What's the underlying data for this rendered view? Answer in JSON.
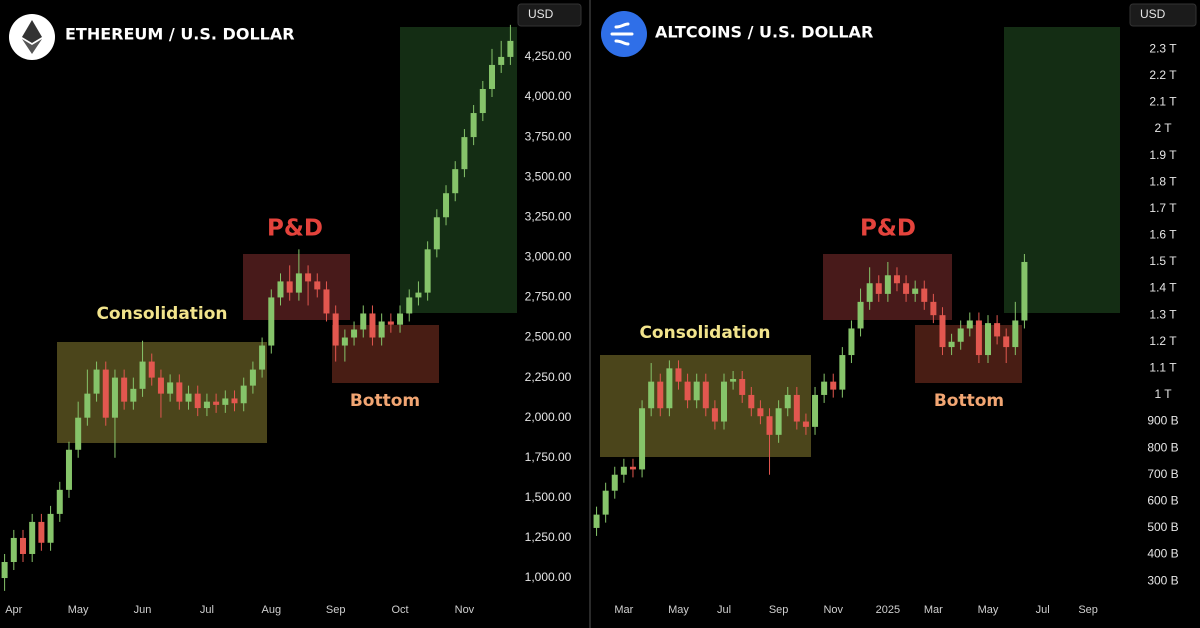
{
  "chart_data": [
    {
      "type": "candlestick",
      "title": "ETHEREUM / U.S. DOLLAR",
      "currency": "USD",
      "annotations": [
        "Consolidation",
        "P&D",
        "Bottom"
      ],
      "up_color": "#86c46a",
      "down_color": "#e2574f",
      "categories": [
        null,
        "Apr",
        null,
        null,
        null,
        null,
        null,
        null,
        "May",
        null,
        null,
        null,
        null,
        null,
        null,
        "Jun",
        null,
        null,
        null,
        null,
        null,
        null,
        "Jul",
        null,
        null,
        null,
        null,
        null,
        null,
        "Aug",
        null,
        null,
        null,
        null,
        null,
        null,
        "Sep",
        null,
        null,
        null,
        null,
        null,
        null,
        "Oct",
        null,
        null,
        null,
        null,
        null,
        null,
        "Nov",
        null,
        null,
        null,
        null,
        null
      ],
      "open": [
        1000,
        1100,
        1250,
        1150,
        1350,
        1220,
        1400,
        1550,
        1800,
        2000,
        2150,
        2300,
        2000,
        2250,
        2100,
        2180,
        2350,
        2250,
        2150,
        2220,
        2100,
        2150,
        2060,
        2100,
        2080,
        2120,
        2090,
        2200,
        2300,
        2450,
        2750,
        2850,
        2780,
        2900,
        2850,
        2800,
        2650,
        2450,
        2500,
        2550,
        2650,
        2500,
        2600,
        2580,
        2650,
        2750,
        2780,
        3050,
        3250,
        3400,
        3550,
        3750,
        3900,
        4050,
        4200,
        4250
      ],
      "high": [
        1150,
        1300,
        1300,
        1400,
        1400,
        1450,
        1600,
        1850,
        2100,
        2300,
        2350,
        2350,
        2300,
        2300,
        2250,
        2480,
        2400,
        2300,
        2270,
        2270,
        2200,
        2200,
        2150,
        2150,
        2170,
        2170,
        2250,
        2350,
        2500,
        2800,
        2900,
        2950,
        3050,
        2950,
        2900,
        2850,
        2700,
        2550,
        2600,
        2700,
        2700,
        2650,
        2650,
        2700,
        2800,
        2850,
        3100,
        3300,
        3450,
        3600,
        3800,
        3950,
        4100,
        4300,
        4350,
        4450
      ],
      "low": [
        920,
        1050,
        1100,
        1100,
        1170,
        1170,
        1350,
        1500,
        1750,
        1950,
        2100,
        1950,
        1750,
        2050,
        2050,
        2130,
        2200,
        2000,
        2100,
        2050,
        2050,
        2010,
        2010,
        2030,
        2030,
        2040,
        2040,
        2150,
        2250,
        2400,
        2700,
        2730,
        2730,
        2700,
        2750,
        2600,
        2350,
        2350,
        2450,
        2500,
        2450,
        2450,
        2530,
        2530,
        2600,
        2700,
        2730,
        3000,
        3200,
        3350,
        3500,
        3700,
        3850,
        4000,
        4150,
        4200
      ],
      "close": [
        1100,
        1250,
        1150,
        1350,
        1220,
        1400,
        1550,
        1800,
        2000,
        2150,
        2300,
        2000,
        2250,
        2100,
        2180,
        2350,
        2250,
        2150,
        2220,
        2100,
        2150,
        2060,
        2100,
        2080,
        2120,
        2090,
        2200,
        2300,
        2450,
        2750,
        2850,
        2780,
        2900,
        2850,
        2800,
        2650,
        2450,
        2500,
        2550,
        2650,
        2500,
        2600,
        2580,
        2650,
        2750,
        2780,
        3050,
        3250,
        3400,
        3550,
        3750,
        3900,
        4050,
        4200,
        4250,
        4350
      ],
      "ylim": [
        863,
        4605
      ],
      "yticks": [
        {
          "value": 1000,
          "label": "1,000.00"
        },
        {
          "value": 1250,
          "label": "1,250.00"
        },
        {
          "value": 1500,
          "label": "1,500.00"
        },
        {
          "value": 1750,
          "label": "1,750.00"
        },
        {
          "value": 2000,
          "label": "2,000.00"
        },
        {
          "value": 2250,
          "label": "2,250.00"
        },
        {
          "value": 2500,
          "label": "2,500.00"
        },
        {
          "value": 2750,
          "label": "2,750.00"
        },
        {
          "value": 3000,
          "label": "3,000.00"
        },
        {
          "value": 3250,
          "label": "3,250.00"
        },
        {
          "value": 3500,
          "label": "3,500.00"
        },
        {
          "value": 3750,
          "label": "3,750.00"
        },
        {
          "value": 4000,
          "label": "4,000.00"
        },
        {
          "value": 4250,
          "label": "4,250.00"
        }
      ]
    },
    {
      "type": "candlestick",
      "title": "ALTCOINS / U.S. DOLLAR",
      "currency": "USD",
      "annotations": [
        "Consolidation",
        "P&D",
        "Bottom"
      ],
      "up_color": "#86c46a",
      "down_color": "#e2574f",
      "categories": [
        null,
        null,
        null,
        "Mar",
        null,
        null,
        null,
        null,
        null,
        "May",
        null,
        null,
        null,
        null,
        "Jul",
        null,
        null,
        null,
        null,
        null,
        "Sep",
        null,
        null,
        null,
        null,
        null,
        "Nov",
        null,
        null,
        null,
        null,
        null,
        "2025",
        null,
        null,
        null,
        null,
        "Mar",
        null,
        null,
        null,
        null,
        null,
        "May",
        null,
        null,
        null,
        null,
        null,
        "Jul",
        null,
        null,
        null,
        null,
        "Sep",
        null,
        null,
        null
      ],
      "open": [
        500000000000.0,
        550000000000.0,
        640000000000.0,
        700000000000.0,
        730000000000.0,
        720000000000.0,
        950000000000.0,
        1050000000000.0,
        950000000000.0,
        1100000000000.0,
        1050000000000.0,
        980000000000.0,
        1050000000000.0,
        950000000000.0,
        900000000000.0,
        1050000000000.0,
        1060000000000.0,
        1000000000000.0,
        950000000000.0,
        920000000000.0,
        850000000000.0,
        950000000000.0,
        1000000000000.0,
        900000000000.0,
        880000000000.0,
        1000000000000.0,
        1050000000000.0,
        1020000000000.0,
        1150000000000.0,
        1250000000000.0,
        1350000000000.0,
        1420000000000.0,
        1380000000000.0,
        1450000000000.0,
        1420000000000.0,
        1380000000000.0,
        1400000000000.0,
        1350000000000.0,
        1300000000000.0,
        1180000000000.0,
        1200000000000.0,
        1250000000000.0,
        1280000000000.0,
        1150000000000.0,
        1270000000000.0,
        1220000000000.0,
        1180000000000.0,
        1280000000000.0,
        null,
        null,
        null,
        null,
        null,
        null,
        null,
        null,
        null,
        null
      ],
      "high": [
        580000000000.0,
        670000000000.0,
        730000000000.0,
        760000000000.0,
        760000000000.0,
        980000000000.0,
        1120000000000.0,
        1080000000000.0,
        1130000000000.0,
        1130000000000.0,
        1080000000000.0,
        1080000000000.0,
        1080000000000.0,
        980000000000.0,
        1080000000000.0,
        1090000000000.0,
        1090000000000.0,
        1030000000000.0,
        980000000000.0,
        950000000000.0,
        980000000000.0,
        1030000000000.0,
        1030000000000.0,
        930000000000.0,
        1030000000000.0,
        1080000000000.0,
        1080000000000.0,
        1180000000000.0,
        1280000000000.0,
        1400000000000.0,
        1480000000000.0,
        1450000000000.0,
        1500000000000.0,
        1480000000000.0,
        1450000000000.0,
        1430000000000.0,
        1430000000000.0,
        1380000000000.0,
        1330000000000.0,
        1230000000000.0,
        1280000000000.0,
        1310000000000.0,
        1310000000000.0,
        1300000000000.0,
        1300000000000.0,
        1250000000000.0,
        1350000000000.0,
        1530000000000.0,
        null,
        null,
        null,
        null,
        null,
        null,
        null,
        null,
        null,
        null
      ],
      "low": [
        470000000000.0,
        520000000000.0,
        610000000000.0,
        670000000000.0,
        690000000000.0,
        690000000000.0,
        920000000000.0,
        920000000000.0,
        920000000000.0,
        1020000000000.0,
        950000000000.0,
        950000000000.0,
        920000000000.0,
        870000000000.0,
        870000000000.0,
        1020000000000.0,
        970000000000.0,
        920000000000.0,
        890000000000.0,
        700000000000.0,
        820000000000.0,
        920000000000.0,
        870000000000.0,
        850000000000.0,
        850000000000.0,
        970000000000.0,
        990000000000.0,
        990000000000.0,
        1120000000000.0,
        1220000000000.0,
        1320000000000.0,
        1350000000000.0,
        1350000000000.0,
        1390000000000.0,
        1350000000000.0,
        1350000000000.0,
        1320000000000.0,
        1270000000000.0,
        1150000000000.0,
        1150000000000.0,
        1170000000000.0,
        1220000000000.0,
        1120000000000.0,
        1120000000000.0,
        1190000000000.0,
        1120000000000.0,
        1150000000000.0,
        1250000000000.0,
        null,
        null,
        null,
        null,
        null,
        null,
        null,
        null,
        null,
        null
      ],
      "close": [
        550000000000.0,
        640000000000.0,
        700000000000.0,
        730000000000.0,
        720000000000.0,
        950000000000.0,
        1050000000000.0,
        950000000000.0,
        1100000000000.0,
        1050000000000.0,
        980000000000.0,
        1050000000000.0,
        950000000000.0,
        900000000000.0,
        1050000000000.0,
        1060000000000.0,
        1000000000000.0,
        950000000000.0,
        920000000000.0,
        850000000000.0,
        950000000000.0,
        1000000000000.0,
        900000000000.0,
        880000000000.0,
        1000000000000.0,
        1050000000000.0,
        1020000000000.0,
        1150000000000.0,
        1250000000000.0,
        1350000000000.0,
        1420000000000.0,
        1380000000000.0,
        1450000000000.0,
        1420000000000.0,
        1380000000000.0,
        1400000000000.0,
        1350000000000.0,
        1300000000000.0,
        1180000000000.0,
        1200000000000.0,
        1250000000000.0,
        1280000000000.0,
        1150000000000.0,
        1270000000000.0,
        1220000000000.0,
        1180000000000.0,
        1280000000000.0,
        1500000000000.0,
        null,
        null,
        null,
        null,
        null,
        null,
        null,
        null,
        null,
        null
      ],
      "ylim": [
        229000000000.0,
        2485000000000.0
      ],
      "yticks": [
        {
          "value": 2300000000000.0,
          "label": "2.3 T"
        },
        {
          "value": 2200000000000.0,
          "label": "2.2 T"
        },
        {
          "value": 2100000000000.0,
          "label": "2.1 T"
        },
        {
          "value": 2000000000000.0,
          "label": "2 T"
        },
        {
          "value": 1900000000000.0,
          "label": "1.9 T"
        },
        {
          "value": 1800000000000.0,
          "label": "1.8 T"
        },
        {
          "value": 1700000000000.0,
          "label": "1.7 T"
        },
        {
          "value": 1600000000000.0,
          "label": "1.6 T"
        },
        {
          "value": 1500000000000.0,
          "label": "1.5 T"
        },
        {
          "value": 1400000000000.0,
          "label": "1.4 T"
        },
        {
          "value": 1300000000000.0,
          "label": "1.3 T"
        },
        {
          "value": 1200000000000.0,
          "label": "1.2 T"
        },
        {
          "value": 1100000000000.0,
          "label": "1.1 T"
        },
        {
          "value": 1000000000000.0,
          "label": "1 T"
        },
        {
          "value": 900000000000.0,
          "label": "900 B"
        },
        {
          "value": 800000000000.0,
          "label": "800 B"
        },
        {
          "value": 700000000000.0,
          "label": "700 B"
        },
        {
          "value": 600000000000.0,
          "label": "600 B"
        },
        {
          "value": 500000000000.0,
          "label": "500 B"
        },
        {
          "value": 400000000000.0,
          "label": "400 B"
        },
        {
          "value": 300000000000.0,
          "label": "300 B"
        }
      ]
    }
  ]
}
